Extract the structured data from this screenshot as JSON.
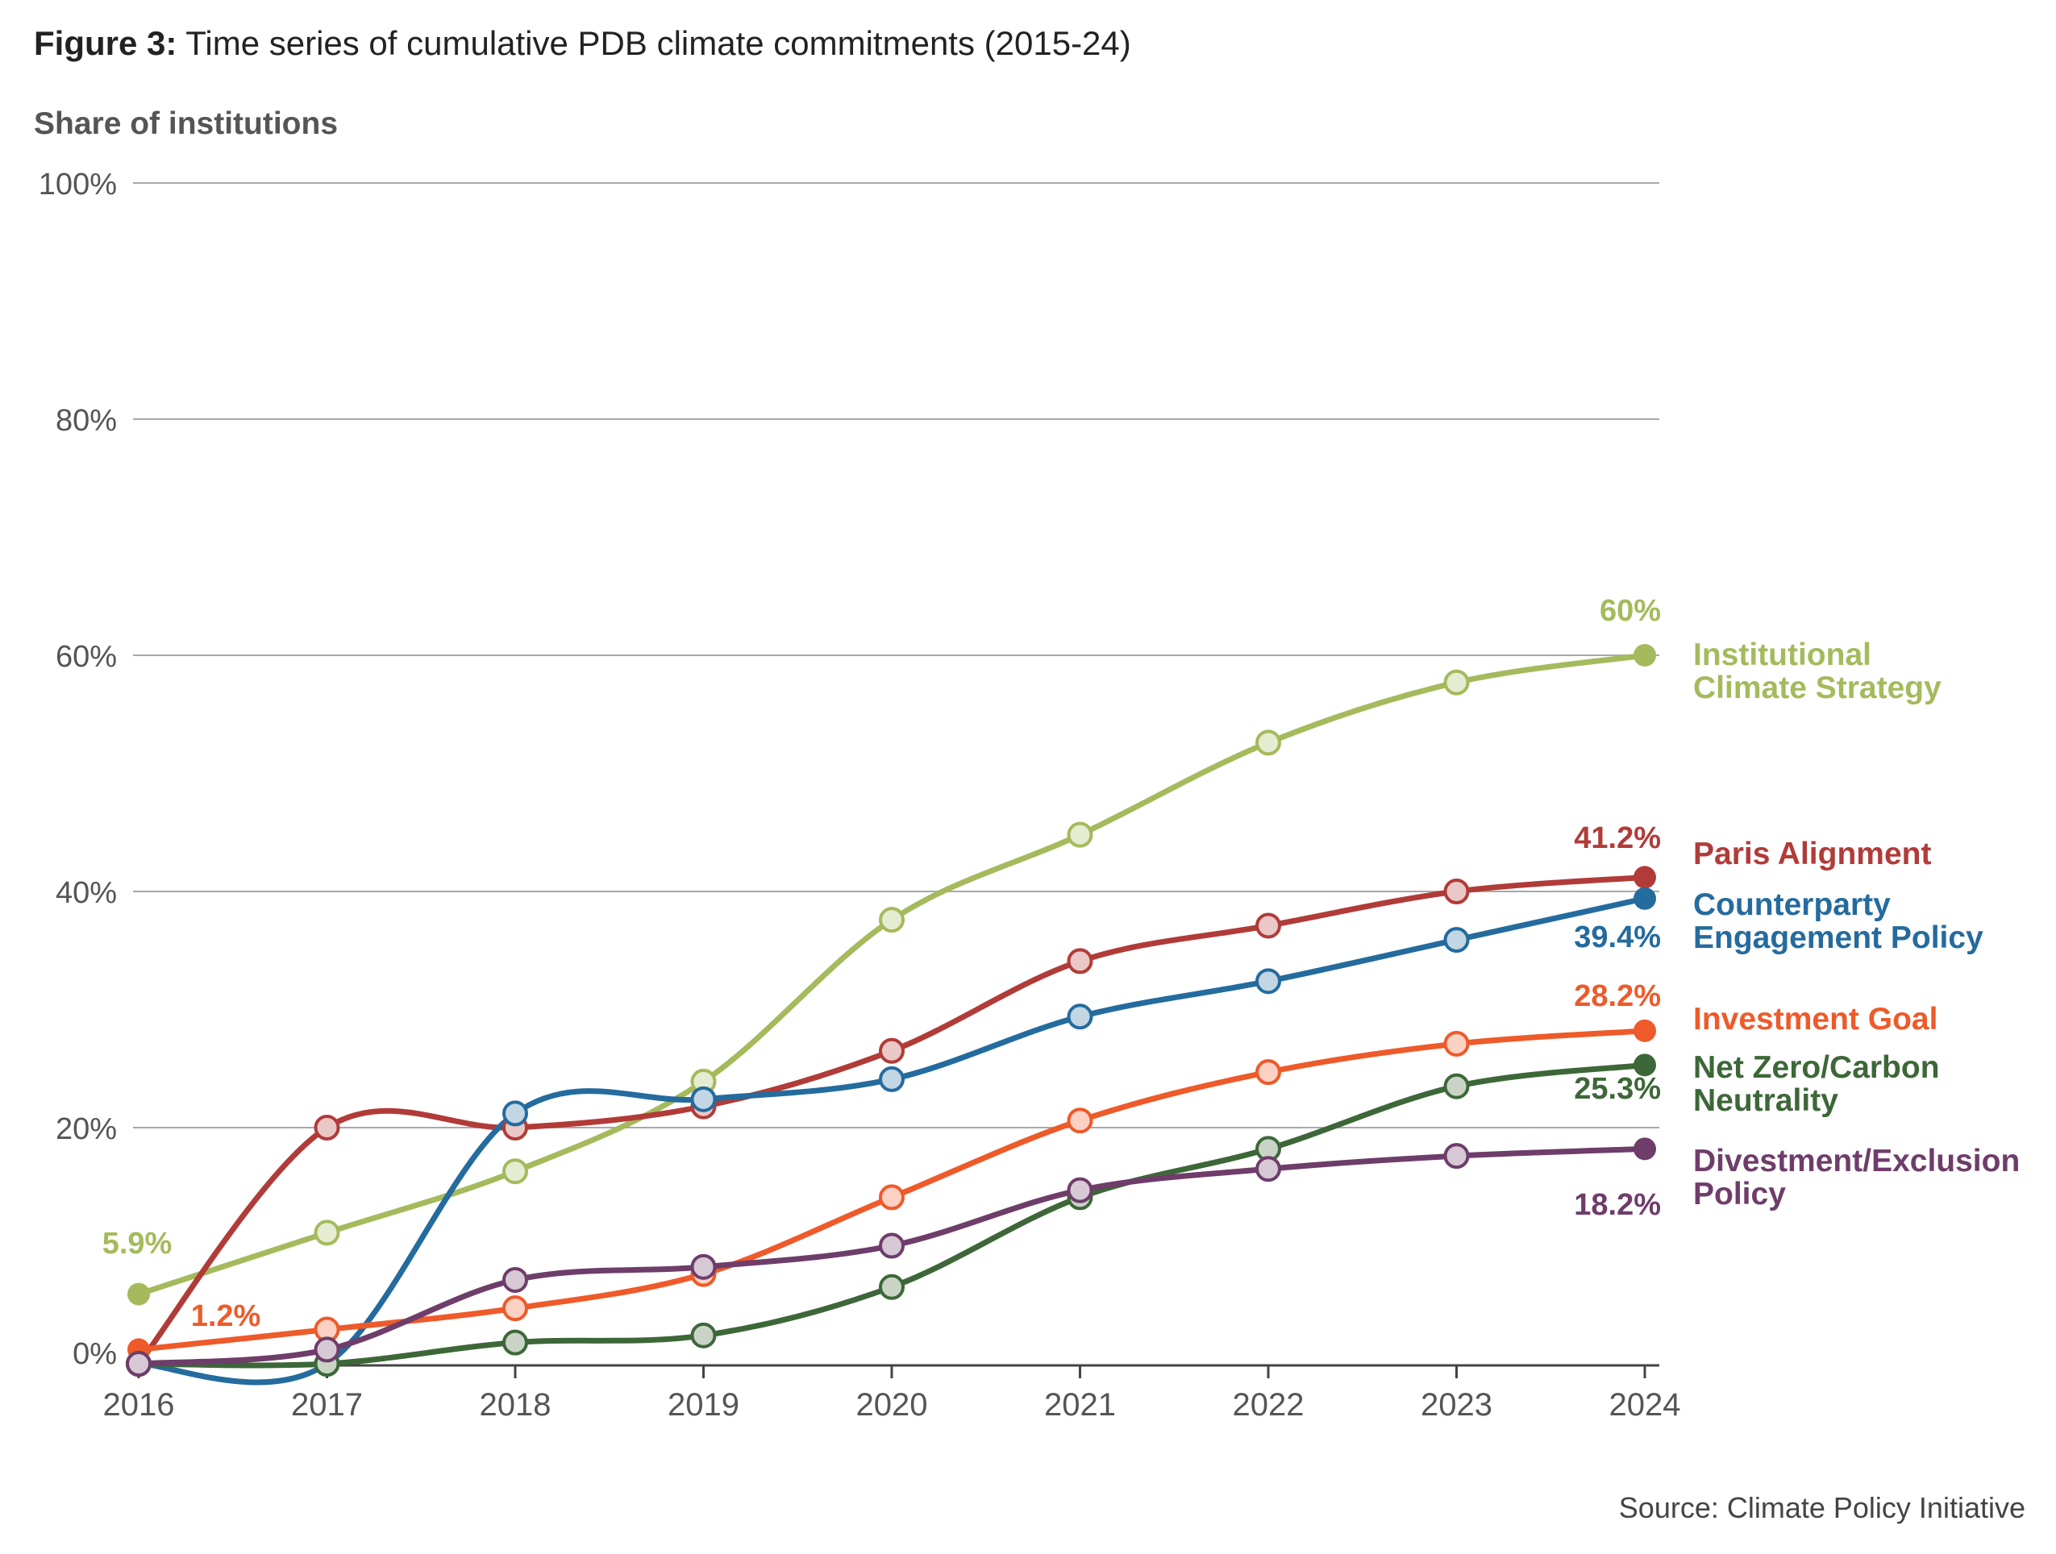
{
  "figure": {
    "label": "Figure 3:",
    "title": "Time series of cumulative PDB climate commitments (2015-24)",
    "source": "Source: Climate Policy Initiative"
  },
  "chart_data": {
    "type": "line",
    "title": "Time series of cumulative PDB climate commitments (2015-24)",
    "ylabel": "Share of institutions",
    "xlabel": "",
    "x": [
      2016,
      2017,
      2018,
      2019,
      2020,
      2021,
      2022,
      2023,
      2024
    ],
    "ylim": [
      0,
      100
    ],
    "yticks": [
      0,
      20,
      40,
      60,
      80,
      100
    ],
    "ytick_labels": [
      "0%",
      "20%",
      "40%",
      "60%",
      "80%",
      "100%"
    ],
    "grid": "horizontal",
    "legend": "direct labels at right",
    "series": [
      {
        "name": "Institutional Climate Strategy",
        "legend_lines": [
          "Institutional",
          "Climate Strategy"
        ],
        "color": "#a5ba5c",
        "values": [
          5.9,
          11.1,
          16.3,
          23.9,
          37.6,
          44.8,
          52.6,
          57.7,
          60.0
        ],
        "start_label": "5.9%",
        "end_label": "60%"
      },
      {
        "name": "Paris Alignment",
        "legend_lines": [
          "Paris Alignment"
        ],
        "color": "#b13b38",
        "values": [
          0.0,
          20.0,
          20.0,
          21.8,
          26.5,
          34.1,
          37.1,
          40.0,
          41.2
        ],
        "end_label": "41.2%"
      },
      {
        "name": "Counterparty Engagement Policy",
        "legend_lines": [
          "Counterparty",
          "Engagement Policy"
        ],
        "color": "#246b9e",
        "values": [
          0.0,
          0.0,
          21.2,
          22.4,
          24.1,
          29.4,
          32.4,
          35.9,
          39.4
        ],
        "end_label": "39.4%"
      },
      {
        "name": "Investment Goal",
        "legend_lines": [
          "Investment Goal"
        ],
        "color": "#ee5a2a",
        "values": [
          1.2,
          2.9,
          4.7,
          7.6,
          14.1,
          20.6,
          24.7,
          27.1,
          28.2
        ],
        "start_label": "1.2%",
        "end_label": "28.2%"
      },
      {
        "name": "Net Zero/Carbon Neutrality",
        "legend_lines": [
          "Net Zero/Carbon",
          "Neutrality"
        ],
        "color": "#3d6738",
        "values": [
          0.0,
          0.0,
          1.8,
          2.4,
          6.5,
          14.1,
          18.2,
          23.5,
          25.3
        ],
        "end_label": "25.3%"
      },
      {
        "name": "Divestment/Exclusion Policy",
        "legend_lines": [
          "Divestment/Exclusion",
          "Policy"
        ],
        "color": "#6e3d6a",
        "values": [
          0.0,
          1.2,
          7.1,
          8.2,
          10.0,
          14.7,
          16.5,
          17.6,
          18.2
        ],
        "end_label": "18.2%"
      }
    ]
  }
}
